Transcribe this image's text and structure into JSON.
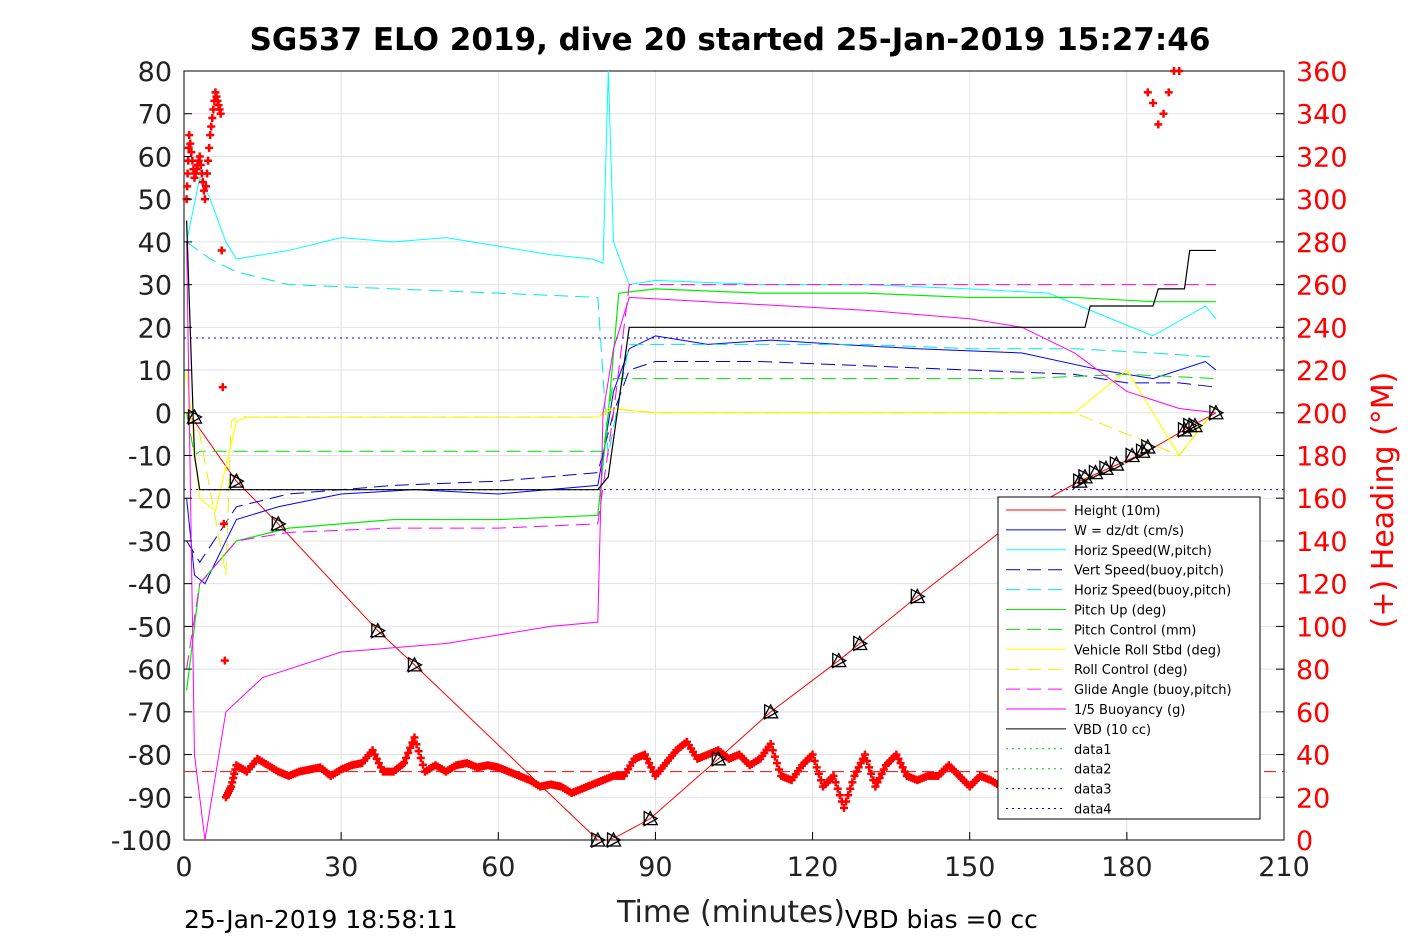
{
  "colors": {
    "height": "#ff0000",
    "w": "#0000ff",
    "horiz_speed_w": "#00ffff",
    "vert_speed_buoy": "#0000cc",
    "horiz_speed_buoy": "#00e5e5",
    "pitch_up": "#00ee00",
    "pitch_control": "#00dd00",
    "vehicle_roll": "#ffff00",
    "roll_control": "#eeee00",
    "glide_angle": "#ff00ff",
    "buoyancy": "#ff00ff",
    "vbd": "#000000",
    "heading": "#ff0000",
    "right_axis": "#ff0000"
  },
  "chart_data": {
    "type": "line",
    "title": "SG537 ELO 2019, dive 20 started 25-Jan-2019 15:27:46",
    "xlabel": "Time (minutes)",
    "ylabel_right": "(+) Heading (°M)",
    "xlim": [
      0,
      210
    ],
    "ylim": [
      -100,
      80
    ],
    "ylim_right": [
      0,
      360
    ],
    "xticks": [
      0,
      30,
      60,
      90,
      120,
      150,
      180,
      210
    ],
    "yticks": [
      -100,
      -90,
      -80,
      -70,
      -60,
      -50,
      -40,
      -30,
      -20,
      -10,
      0,
      10,
      20,
      30,
      40,
      50,
      60,
      70,
      80
    ],
    "yticks_right": [
      0,
      20,
      40,
      60,
      80,
      100,
      120,
      140,
      160,
      180,
      200,
      220,
      240,
      260,
      280,
      300,
      320,
      340,
      360
    ],
    "grid": true,
    "legend_position": "lower-right",
    "footer_left": "25-Jan-2019 18:58:11",
    "footer_right": "VBD bias =0 cc",
    "reference_lines": [
      {
        "name": "data3",
        "y": 17.5
      },
      {
        "name": "data4",
        "y": -18
      },
      {
        "name": "data1",
        "y": -84
      }
    ],
    "series": [
      {
        "name": "Height (10m)",
        "key": "height",
        "x": [
          0.5,
          2,
          10,
          18,
          37,
          44,
          79,
          81,
          83,
          89,
          102,
          112,
          125,
          129,
          140,
          162,
          171,
          184,
          191,
          197
        ],
        "y": [
          0,
          -2,
          -16,
          -26,
          -51,
          -59,
          -100,
          -100,
          -99,
          -95,
          -81,
          -70,
          -58,
          -54,
          -43,
          -22,
          -16,
          -9,
          -4,
          0
        ]
      },
      {
        "name": "W = dz/dt (cm/s)",
        "key": "w",
        "x": [
          0.5,
          2,
          4,
          10,
          18,
          30,
          44,
          60,
          79,
          80,
          82,
          85,
          90,
          100,
          112,
          125,
          140,
          160,
          175,
          185,
          195,
          197
        ],
        "y": [
          -20,
          -38,
          -40,
          -25,
          -22,
          -19,
          -18,
          -19,
          -17,
          -10,
          5,
          15,
          18,
          16,
          17,
          16,
          15,
          14,
          10,
          8,
          12,
          10
        ]
      },
      {
        "name": "Horiz Speed(W,pitch)",
        "key": "horiz_speed_w",
        "x": [
          0.5,
          3,
          5,
          8,
          10,
          20,
          30,
          40,
          50,
          60,
          70,
          78,
          80,
          81,
          82,
          85,
          90,
          110,
          130,
          150,
          165,
          175,
          185,
          195,
          197
        ],
        "y": [
          40,
          55,
          50,
          40,
          36,
          38,
          41,
          40,
          41,
          39,
          37,
          36,
          35,
          80,
          40,
          30,
          31,
          30,
          30,
          29,
          28,
          23,
          18,
          25,
          22
        ]
      },
      {
        "name": "Vert Speed(buoy,pitch)",
        "key": "vert_speed_buoy",
        "x": [
          0.5,
          3,
          10,
          20,
          40,
          60,
          79,
          82,
          85,
          90,
          110,
          130,
          150,
          170,
          180,
          190,
          197
        ],
        "y": [
          -30,
          -35,
          -22,
          -19,
          -17,
          -16,
          -14,
          0,
          10,
          12,
          12,
          11,
          10,
          9,
          7,
          7,
          6
        ]
      },
      {
        "name": "Horiz Speed(buoy,pitch)",
        "key": "horiz_speed_buoy",
        "x": [
          0.5,
          5,
          10,
          20,
          40,
          60,
          79,
          81,
          85,
          90,
          110,
          130,
          150,
          170,
          185,
          197
        ],
        "y": [
          40,
          36,
          33,
          30,
          29,
          28,
          27,
          -10,
          16,
          16,
          16,
          16,
          15,
          15,
          14,
          13
        ]
      },
      {
        "name": "Pitch Up (deg)",
        "key": "pitch_up",
        "x": [
          0.5,
          3,
          10,
          20,
          40,
          60,
          79,
          81,
          83,
          90,
          110,
          130,
          150,
          170,
          185,
          197
        ],
        "y": [
          -65,
          -40,
          -30,
          -27,
          -25,
          -25,
          -24,
          0,
          28,
          29,
          28,
          28,
          27,
          27,
          26,
          26
        ]
      },
      {
        "name": "Pitch Control (mm)",
        "key": "pitch_control",
        "x": [
          0.5,
          2,
          3,
          20,
          60,
          80,
          82,
          84,
          120,
          160,
          180,
          197
        ],
        "y": [
          0,
          -10,
          -9,
          -9,
          -9,
          -9,
          8,
          8,
          8,
          8,
          9,
          8
        ]
      },
      {
        "name": "Vehicle Roll Stbd (deg)",
        "key": "vehicle_roll",
        "x": [
          0.5,
          3,
          6,
          10,
          12,
          30,
          60,
          79,
          82,
          90,
          120,
          150,
          170,
          180,
          190,
          197
        ],
        "y": [
          10,
          -20,
          -23,
          -2,
          -1,
          -1,
          -1,
          -1,
          1,
          0,
          0,
          0,
          0,
          10,
          -10,
          1
        ]
      },
      {
        "name": "Roll Control (deg)",
        "key": "roll_control",
        "x": [
          0.5,
          3,
          8,
          9,
          10,
          30,
          79,
          81,
          90,
          130,
          170,
          190,
          197
        ],
        "y": [
          0,
          -5,
          -38,
          -2,
          -1,
          -1,
          -1,
          1,
          0,
          0,
          0,
          -10,
          1
        ]
      },
      {
        "name": "Glide Angle (buoy,pitch)",
        "key": "glide_angle",
        "x": [
          0.5,
          3,
          10,
          20,
          40,
          60,
          79,
          82,
          85,
          100,
          130,
          160,
          180,
          197
        ],
        "y": [
          -60,
          -40,
          -30,
          -28,
          -27,
          -27,
          -26,
          0,
          30,
          30,
          30,
          30,
          30,
          30
        ]
      },
      {
        "name": "1/5 Buoyancy (g)",
        "key": "buoyancy",
        "x": [
          0.5,
          2,
          4,
          8,
          15,
          30,
          50,
          70,
          79,
          80,
          82,
          85,
          100,
          130,
          150,
          160,
          170,
          180,
          190,
          197
        ],
        "y": [
          40,
          -80,
          -100,
          -70,
          -62,
          -56,
          -54,
          -50,
          -49,
          0,
          15,
          27,
          26,
          24,
          22,
          20,
          14,
          5,
          1,
          0
        ]
      },
      {
        "name": "VBD (10 cc)",
        "key": "vbd",
        "x": [
          0.5,
          2,
          3,
          79,
          81,
          85,
          86,
          165,
          172,
          173,
          185,
          186,
          191,
          192,
          197
        ],
        "y": [
          45,
          -10,
          -18,
          -18,
          -15,
          20,
          20,
          20,
          20,
          25,
          25,
          29,
          29,
          38,
          38
        ]
      },
      {
        "name": "data1",
        "key": "data1",
        "x": [],
        "y": []
      },
      {
        "name": "data2",
        "key": "data2",
        "x": [],
        "y": []
      },
      {
        "name": "data3",
        "key": "data3",
        "x": [],
        "y": []
      },
      {
        "name": "data4",
        "key": "data4",
        "x": [],
        "y": []
      }
    ],
    "heading": {
      "name": "(+) Heading (°M)",
      "axis": "right",
      "x": [
        0.5,
        1,
        2,
        3,
        4,
        5,
        6,
        7,
        8,
        9,
        10,
        12,
        14,
        16,
        18,
        20,
        22,
        24,
        26,
        28,
        30,
        32,
        34,
        36,
        38,
        40,
        42,
        44,
        46,
        48,
        50,
        52,
        54,
        56,
        58,
        60,
        62,
        64,
        66,
        68,
        70,
        72,
        74,
        76,
        78,
        80,
        82,
        84,
        86,
        88,
        90,
        92,
        94,
        96,
        98,
        100,
        102,
        104,
        106,
        108,
        110,
        112,
        114,
        116,
        118,
        120,
        122,
        124,
        126,
        128,
        130,
        132,
        134,
        136,
        138,
        140,
        142,
        144,
        146,
        148,
        150,
        152,
        154,
        156,
        158
      ],
      "y": [
        300,
        330,
        310,
        320,
        300,
        330,
        350,
        340,
        20,
        25,
        35,
        32,
        38,
        35,
        32,
        30,
        32,
        33,
        34,
        30,
        33,
        35,
        36,
        42,
        32,
        32,
        36,
        48,
        32,
        35,
        32,
        35,
        36,
        34,
        35,
        34,
        32,
        30,
        28,
        25,
        26,
        25,
        22,
        24,
        26,
        28,
        30,
        30,
        38,
        40,
        30,
        36,
        42,
        46,
        38,
        40,
        42,
        38,
        40,
        35,
        38,
        45,
        30,
        28,
        35,
        40,
        25,
        30,
        15,
        30,
        40,
        25,
        35,
        40,
        30,
        28,
        30,
        30,
        35,
        30,
        25,
        30,
        28,
        25,
        28
      ]
    },
    "heading_late": {
      "x": [
        184,
        185,
        186,
        187,
        188,
        189,
        190
      ],
      "y": [
        350,
        345,
        335,
        340,
        350,
        360,
        360
      ]
    },
    "markers_triangles": {
      "x": [
        2,
        10,
        18,
        37,
        44,
        79,
        82,
        89,
        102,
        112,
        125,
        129,
        140,
        171,
        172,
        174,
        176,
        178,
        181,
        183,
        184,
        191,
        192,
        193,
        197
      ],
      "y": [
        -1,
        -16,
        -26,
        -51,
        -59,
        -100,
        -100,
        -95,
        -81,
        -70,
        -58,
        -54,
        -43,
        -16,
        -15,
        -14,
        -13,
        -12,
        -10,
        -9,
        -8,
        -4,
        -3,
        -3,
        0
      ]
    }
  }
}
